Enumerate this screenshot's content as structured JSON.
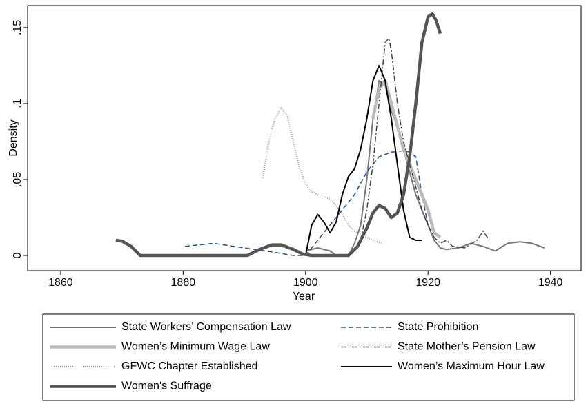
{
  "chart_data": {
    "type": "line",
    "x_label": "Year",
    "y_label": "Density",
    "xlim": [
      1854.6,
      1945
    ],
    "ylim": [
      -0.01,
      0.1645
    ],
    "xticks": [
      1860,
      1880,
      1900,
      1920,
      1940
    ],
    "yticks": [
      {
        "value": 0,
        "label": "0"
      },
      {
        "value": 0.05,
        "label": ".05"
      },
      {
        "value": 0.1,
        "label": ".1"
      },
      {
        "value": 0.15,
        "label": ".15"
      }
    ],
    "series": [
      {
        "name": "State Workers’ Compensation Law",
        "color": "#777777",
        "style": "solid",
        "x": [
          1900,
          1902,
          1904,
          1905,
          1907,
          1908,
          1909,
          1910,
          1911,
          1912,
          1913,
          1914,
          1915,
          1916,
          1917,
          1918,
          1919,
          1920,
          1921,
          1922,
          1923,
          1925,
          1927,
          1929,
          1931,
          1933,
          1935,
          1937,
          1939
        ],
        "values": [
          0.003,
          0.005,
          0.003,
          0,
          0,
          0.008,
          0.02,
          0.05,
          0.09,
          0.115,
          0.112,
          0.095,
          0.085,
          0.07,
          0.055,
          0.04,
          0.03,
          0.02,
          0.01,
          0.005,
          0.004,
          0.005,
          0.008,
          0.006,
          0.003,
          0.008,
          0.009,
          0.008,
          0.005
        ]
      },
      {
        "name": "State Prohibition",
        "color": "#2a4f7a",
        "style": "dash",
        "x": [
          1880.3,
          1885,
          1890,
          1895,
          1898,
          1900,
          1902,
          1905,
          1908,
          1910,
          1912,
          1914,
          1916,
          1917,
          1918,
          1919,
          1920
        ],
        "values": [
          0.006,
          0.008,
          0.005,
          0.002,
          0,
          0,
          0.01,
          0.025,
          0.04,
          0.055,
          0.065,
          0.068,
          0.069,
          0.068,
          0.065,
          0.04,
          0.02
        ]
      },
      {
        "name": "Women’s Minimum Wage Law",
        "color": "#bbbbbb",
        "style": "thick",
        "x": [
          1911,
          1912,
          1913,
          1914,
          1915,
          1916,
          1917,
          1918,
          1919,
          1920,
          1921,
          1922
        ],
        "values": [
          0.09,
          0.11,
          0.115,
          0.1,
          0.085,
          0.07,
          0.06,
          0.05,
          0.04,
          0.03,
          0.015,
          0.012
        ]
      },
      {
        "name": "State Mother’s Pension Law",
        "color": "#444444",
        "style": "dashdot",
        "x": [
          1909,
          1910,
          1911,
          1912,
          1913,
          1913.6,
          1914,
          1915,
          1916,
          1917,
          1918,
          1919,
          1920,
          1921,
          1922,
          1923,
          1924,
          1926,
          1928,
          1929,
          1930
        ],
        "values": [
          0.01,
          0.03,
          0.06,
          0.1,
          0.14,
          0.143,
          0.135,
          0.1,
          0.075,
          0.06,
          0.045,
          0.03,
          0.02,
          0.012,
          0.008,
          0.01,
          0.006,
          0.005,
          0.01,
          0.016,
          0.01
        ]
      },
      {
        "name": "GFWC Chapter Established",
        "color": "#999999",
        "style": "dot",
        "x": [
          1893,
          1894,
          1895,
          1896,
          1897,
          1898,
          1899,
          1900,
          1901,
          1902,
          1903,
          1904,
          1905,
          1906,
          1907,
          1908,
          1909,
          1910,
          1911,
          1912.4
        ],
        "values": [
          0.051,
          0.075,
          0.09,
          0.097,
          0.092,
          0.075,
          0.058,
          0.047,
          0.042,
          0.04,
          0.039,
          0.037,
          0.033,
          0.027,
          0.02,
          0.016,
          0.014,
          0.012,
          0.01,
          0.008
        ]
      },
      {
        "name": "Women’s Maximum Hour Law",
        "color": "#000000",
        "style": "solid",
        "x": [
          1900,
          1901,
          1902,
          1903,
          1904,
          1905,
          1906,
          1907,
          1908,
          1909,
          1910,
          1911,
          1912,
          1913,
          1914,
          1915,
          1916,
          1917,
          1918,
          1919
        ],
        "values": [
          0,
          0.02,
          0.027,
          0.022,
          0.015,
          0.022,
          0.04,
          0.052,
          0.057,
          0.07,
          0.09,
          0.115,
          0.125,
          0.115,
          0.09,
          0.06,
          0.03,
          0.012,
          0.01,
          0.01
        ]
      },
      {
        "name": "Women’s Suffrage",
        "color": "#555555",
        "style": "thick",
        "x": [
          1869,
          1870,
          1871.5,
          1873,
          1890.5,
          1892.5,
          1894.5,
          1896,
          1898,
          1899.5,
          1901,
          1907,
          1908.5,
          1910,
          1911,
          1912,
          1913,
          1914,
          1915,
          1916,
          1917,
          1918,
          1919,
          1920,
          1920.7,
          1921.3,
          1922
        ],
        "values": [
          0.01,
          0.0095,
          0.006,
          0,
          0,
          0.004,
          0.007,
          0.007,
          0.004,
          0.001,
          0,
          0,
          0.006,
          0.018,
          0.028,
          0.033,
          0.031,
          0.025,
          0.028,
          0.04,
          0.065,
          0.1,
          0.14,
          0.157,
          0.159,
          0.155,
          0.146
        ]
      }
    ]
  }
}
